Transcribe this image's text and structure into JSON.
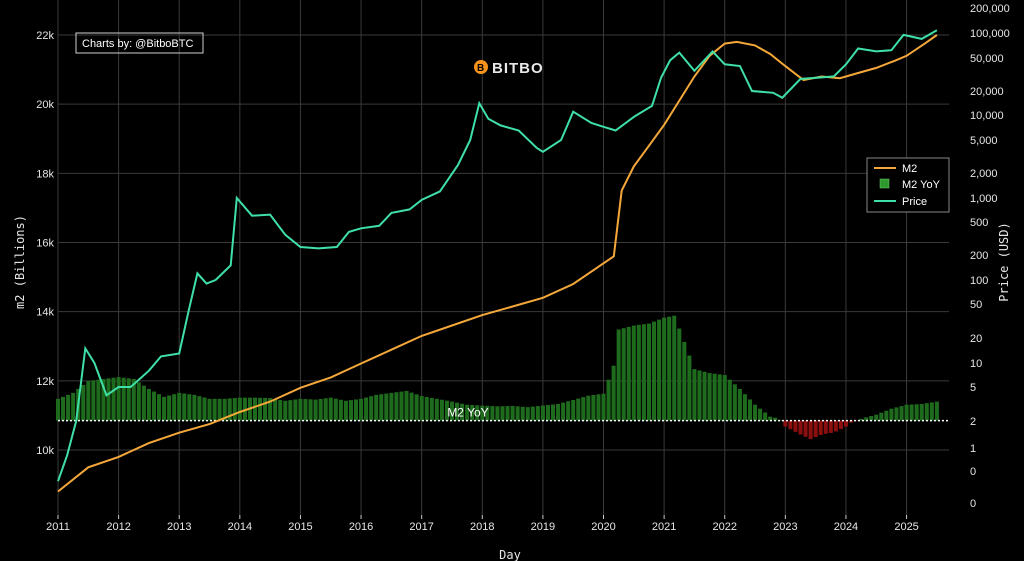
{
  "brand": {
    "name": "BITBO"
  },
  "credit": "Charts by: @BitboBTC",
  "chart_data": {
    "type": "bar+line",
    "xlabel": "Day",
    "ylabel_left": "m2 (Billions)",
    "ylabel_right": "Price (USD)",
    "x_range": [
      2011.0,
      2025.7
    ],
    "left_axis": {
      "range": [
        8700,
        22400
      ],
      "ticks": [
        10000,
        12000,
        14000,
        16000,
        18000,
        20000,
        22000
      ],
      "tick_labels": [
        "10k",
        "12k",
        "14k",
        "16k",
        "18k",
        "20k",
        "22k"
      ]
    },
    "right_axis": {
      "scale": "log",
      "tick_labels": [
        "0",
        "0",
        "1",
        "2",
        "5",
        "10",
        "20",
        "50",
        "100",
        "200",
        "500",
        "1,000",
        "2,000",
        "5,000",
        "10,000",
        "20,000",
        "50,000",
        "100,000",
        "200,000"
      ],
      "tick_values": [
        0.1,
        0.5,
        1,
        2,
        5,
        10,
        20,
        50,
        100,
        200,
        500,
        1000,
        2000,
        5000,
        10000,
        20000,
        50000,
        100000,
        200000
      ]
    },
    "x_ticks": [
      "2011",
      "2012",
      "2013",
      "2014",
      "2015",
      "2016",
      "2017",
      "2018",
      "2019",
      "2020",
      "2021",
      "2022",
      "2023",
      "2024",
      "2025"
    ],
    "legend": {
      "placement": "right",
      "items": [
        {
          "name": "M2",
          "kind": "line",
          "color": "#f5a83a"
        },
        {
          "name": "M2 YoY",
          "kind": "bar",
          "color": "#2e9a2e"
        },
        {
          "name": "Price",
          "kind": "line",
          "color": "#3fe0a8"
        }
      ]
    },
    "reference_line": {
      "label": "M2 YoY",
      "m2_value": 10850
    },
    "colors": {
      "bar_positive": "#1e6b1e",
      "bar_negative": "#8b0f0f",
      "m2_line": "#f5a83a",
      "price_line": "#3fe0a8",
      "grid": "#3a3a3a"
    },
    "m2_series": [
      [
        2011.0,
        8800
      ],
      [
        2011.5,
        9500
      ],
      [
        2012.0,
        9800
      ],
      [
        2012.5,
        10200
      ],
      [
        2013.0,
        10500
      ],
      [
        2013.5,
        10750
      ],
      [
        2014.0,
        11100
      ],
      [
        2014.5,
        11400
      ],
      [
        2015.0,
        11800
      ],
      [
        2015.5,
        12100
      ],
      [
        2016.0,
        12500
      ],
      [
        2016.5,
        12900
      ],
      [
        2017.0,
        13300
      ],
      [
        2017.5,
        13600
      ],
      [
        2018.0,
        13900
      ],
      [
        2018.5,
        14150
      ],
      [
        2019.0,
        14400
      ],
      [
        2019.5,
        14800
      ],
      [
        2020.0,
        15400
      ],
      [
        2020.17,
        15600
      ],
      [
        2020.3,
        17500
      ],
      [
        2020.5,
        18200
      ],
      [
        2020.75,
        18800
      ],
      [
        2021.0,
        19400
      ],
      [
        2021.5,
        20800
      ],
      [
        2021.75,
        21400
      ],
      [
        2022.0,
        21750
      ],
      [
        2022.2,
        21800
      ],
      [
        2022.5,
        21700
      ],
      [
        2022.75,
        21450
      ],
      [
        2023.0,
        21100
      ],
      [
        2023.3,
        20700
      ],
      [
        2023.6,
        20800
      ],
      [
        2023.9,
        20750
      ],
      [
        2024.2,
        20900
      ],
      [
        2024.5,
        21050
      ],
      [
        2024.8,
        21250
      ],
      [
        2025.0,
        21400
      ],
      [
        2025.3,
        21750
      ],
      [
        2025.5,
        22000
      ]
    ],
    "price_series": [
      [
        2011.0,
        0.3
      ],
      [
        2011.15,
        0.8
      ],
      [
        2011.3,
        2
      ],
      [
        2011.45,
        15
      ],
      [
        2011.6,
        10
      ],
      [
        2011.8,
        4
      ],
      [
        2012.0,
        5
      ],
      [
        2012.2,
        5
      ],
      [
        2012.5,
        8
      ],
      [
        2012.7,
        12
      ],
      [
        2013.0,
        13
      ],
      [
        2013.15,
        40
      ],
      [
        2013.3,
        120
      ],
      [
        2013.45,
        90
      ],
      [
        2013.6,
        100
      ],
      [
        2013.85,
        150
      ],
      [
        2013.95,
        1000
      ],
      [
        2014.2,
        600
      ],
      [
        2014.5,
        620
      ],
      [
        2014.75,
        350
      ],
      [
        2015.0,
        250
      ],
      [
        2015.3,
        240
      ],
      [
        2015.6,
        250
      ],
      [
        2015.8,
        380
      ],
      [
        2016.0,
        420
      ],
      [
        2016.3,
        450
      ],
      [
        2016.5,
        650
      ],
      [
        2016.8,
        720
      ],
      [
        2017.0,
        950
      ],
      [
        2017.3,
        1200
      ],
      [
        2017.6,
        2500
      ],
      [
        2017.8,
        5000
      ],
      [
        2017.95,
        14000
      ],
      [
        2018.1,
        9000
      ],
      [
        2018.3,
        7500
      ],
      [
        2018.6,
        6500
      ],
      [
        2018.9,
        4000
      ],
      [
        2019.0,
        3600
      ],
      [
        2019.3,
        5000
      ],
      [
        2019.5,
        11000
      ],
      [
        2019.8,
        8000
      ],
      [
        2020.0,
        7200
      ],
      [
        2020.2,
        6500
      ],
      [
        2020.5,
        9500
      ],
      [
        2020.8,
        13000
      ],
      [
        2020.95,
        29000
      ],
      [
        2021.1,
        47000
      ],
      [
        2021.25,
        58000
      ],
      [
        2021.5,
        35000
      ],
      [
        2021.8,
        60000
      ],
      [
        2022.0,
        42000
      ],
      [
        2022.25,
        40000
      ],
      [
        2022.45,
        20000
      ],
      [
        2022.8,
        19000
      ],
      [
        2022.95,
        16500
      ],
      [
        2023.25,
        28000
      ],
      [
        2023.55,
        29000
      ],
      [
        2023.8,
        30000
      ],
      [
        2024.0,
        42000
      ],
      [
        2024.2,
        65000
      ],
      [
        2024.5,
        60000
      ],
      [
        2024.75,
        62000
      ],
      [
        2024.95,
        95000
      ],
      [
        2025.25,
        85000
      ],
      [
        2025.5,
        108000
      ]
    ],
    "m2_yoy_series": [
      [
        2011.0,
        5.5
      ],
      [
        2011.25,
        7
      ],
      [
        2011.5,
        10
      ],
      [
        2011.75,
        10.5
      ],
      [
        2012.0,
        11
      ],
      [
        2012.25,
        10.5
      ],
      [
        2012.5,
        8
      ],
      [
        2012.75,
        6
      ],
      [
        2013.0,
        7
      ],
      [
        2013.25,
        6.5
      ],
      [
        2013.5,
        5.5
      ],
      [
        2013.75,
        5.5
      ],
      [
        2014.0,
        5.8
      ],
      [
        2014.25,
        5.8
      ],
      [
        2014.5,
        5.7
      ],
      [
        2014.75,
        5
      ],
      [
        2015.0,
        5.5
      ],
      [
        2015.25,
        5.3
      ],
      [
        2015.5,
        5.8
      ],
      [
        2015.75,
        5
      ],
      [
        2016.0,
        5.5
      ],
      [
        2016.25,
        6.5
      ],
      [
        2016.5,
        7
      ],
      [
        2016.75,
        7.5
      ],
      [
        2017.0,
        6.2
      ],
      [
        2017.25,
        5.5
      ],
      [
        2017.5,
        4.8
      ],
      [
        2017.75,
        4
      ],
      [
        2018.0,
        3.8
      ],
      [
        2018.25,
        3.6
      ],
      [
        2018.5,
        3.7
      ],
      [
        2018.75,
        3.4
      ],
      [
        2019.0,
        3.8
      ],
      [
        2019.25,
        4.2
      ],
      [
        2019.5,
        5.2
      ],
      [
        2019.75,
        6.3
      ],
      [
        2020.0,
        6.8
      ],
      [
        2020.17,
        14
      ],
      [
        2020.25,
        23
      ],
      [
        2020.5,
        24
      ],
      [
        2020.75,
        24.5
      ],
      [
        2021.0,
        26
      ],
      [
        2021.17,
        26.5
      ],
      [
        2021.33,
        20
      ],
      [
        2021.5,
        13
      ],
      [
        2021.75,
        12
      ],
      [
        2022.0,
        11.5
      ],
      [
        2022.25,
        8
      ],
      [
        2022.5,
        4
      ],
      [
        2022.67,
        2
      ],
      [
        2022.75,
        1
      ],
      [
        2022.9,
        0.5
      ],
      [
        2023.0,
        -1.5
      ],
      [
        2023.25,
        -3.5
      ],
      [
        2023.42,
        -4.7
      ],
      [
        2023.6,
        -3.5
      ],
      [
        2023.8,
        -3
      ],
      [
        2024.0,
        -1.5
      ],
      [
        2024.08,
        -0.5
      ],
      [
        2024.3,
        0.7
      ],
      [
        2024.5,
        1.5
      ],
      [
        2024.75,
        3
      ],
      [
        2025.0,
        4
      ],
      [
        2025.25,
        4.2
      ],
      [
        2025.5,
        4.8
      ]
    ]
  }
}
